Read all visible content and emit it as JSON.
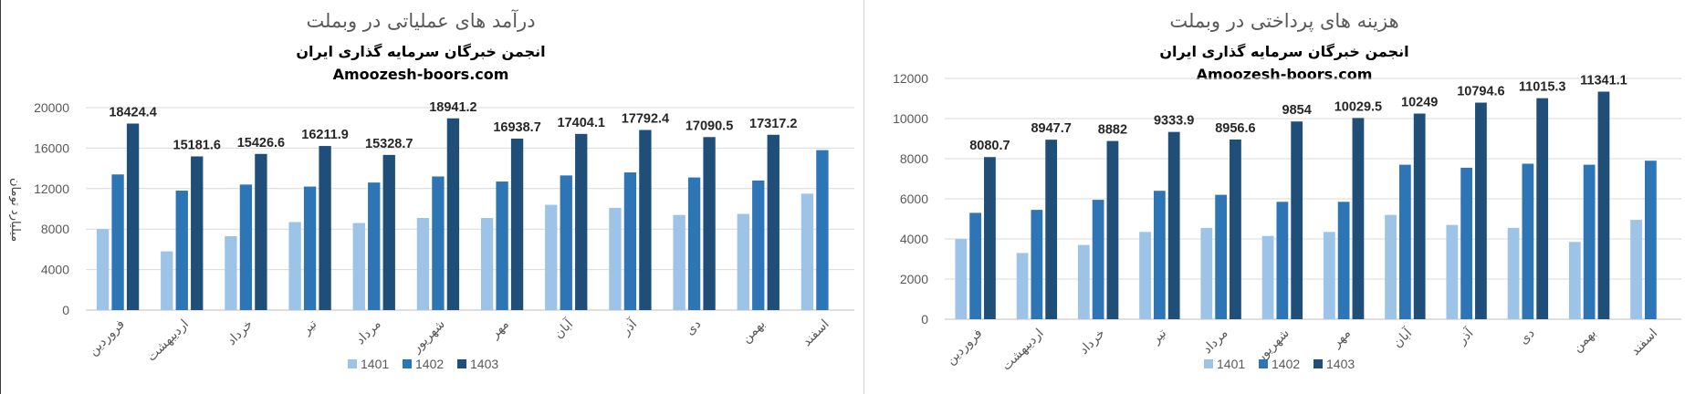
{
  "colors": {
    "s1401": "#9DC3E6",
    "s1402": "#2E75B6",
    "s1403": "#1F4E79",
    "grid": "#D9D9D9"
  },
  "chart_data": [
    {
      "type": "bar",
      "title": "درآمد های عملیاتی در وبملت",
      "subtitle1": "انجمن خبرگان سرمایه گذاری ایران",
      "subtitle2": "Amoozesh-boors.com",
      "ylabel": "میلیارد تومان",
      "xlabel": "",
      "ylim": [
        0,
        20000
      ],
      "yticks": [
        0,
        4000,
        8000,
        12000,
        16000,
        20000
      ],
      "grid": true,
      "legend_position": "bottom",
      "categories": [
        "فروردین",
        "اردیبهشت",
        "خرداد",
        "تیر",
        "مرداد",
        "شهریور",
        "مهر",
        "آبان",
        "آذر",
        "دی",
        "بهمن",
        "اسفند"
      ],
      "series": [
        {
          "name": "1401",
          "values": [
            8000,
            5800,
            7300,
            8700,
            8600,
            9100,
            9100,
            10400,
            10100,
            9400,
            9500,
            11500
          ]
        },
        {
          "name": "1402",
          "values": [
            13400,
            11800,
            12400,
            12200,
            12600,
            13200,
            12700,
            13300,
            13600,
            13100,
            12800,
            15800
          ]
        },
        {
          "name": "1403",
          "values": [
            18424.4,
            15181.6,
            15426.6,
            16211.9,
            15328.7,
            18941.2,
            16938.7,
            17404.1,
            17792.4,
            17090.5,
            17317.2,
            null
          ]
        }
      ],
      "data_labels": [
        "18424.4",
        "15181.6",
        "15426.6",
        "16211.9",
        "15328.7",
        "18941.2",
        "16938.7",
        "17404.1",
        "17792.4",
        "17090.5",
        "17317.2"
      ]
    },
    {
      "type": "bar",
      "title": "هزینه های پرداختی در وبملت",
      "subtitle1": "انجمن خبرگان سرمایه گذاری ایران",
      "subtitle2": "Amoozesh-boors.com",
      "ylabel": "",
      "xlabel": "",
      "ylim": [
        0,
        12000
      ],
      "yticks": [
        0,
        2000,
        4000,
        6000,
        8000,
        10000,
        12000
      ],
      "grid": true,
      "legend_position": "bottom",
      "categories": [
        "فروردین",
        "اردیبهشت",
        "خرداد",
        "تیر",
        "مرداد",
        "شهریور",
        "مهر",
        "آبان",
        "آذر",
        "دی",
        "بهمن",
        "اسفند"
      ],
      "series": [
        {
          "name": "1401",
          "values": [
            4000,
            3300,
            3700,
            4350,
            4550,
            4150,
            4350,
            5200,
            4700,
            4550,
            3850,
            4950
          ]
        },
        {
          "name": "1402",
          "values": [
            5300,
            5450,
            5950,
            6400,
            6200,
            5850,
            5850,
            7700,
            7550,
            7750,
            7700,
            7900
          ]
        },
        {
          "name": "1403",
          "values": [
            8080.7,
            8947.7,
            8882,
            9333.9,
            8956.6,
            9854,
            10029.5,
            10249,
            10794.6,
            11015.3,
            11341.1,
            null
          ]
        }
      ],
      "data_labels": [
        "8080.7",
        "8947.7",
        "8882",
        "9333.9",
        "8956.6",
        "9854",
        "10029.5",
        "10249",
        "10794.6",
        "11015.3",
        "11341.1"
      ]
    }
  ]
}
